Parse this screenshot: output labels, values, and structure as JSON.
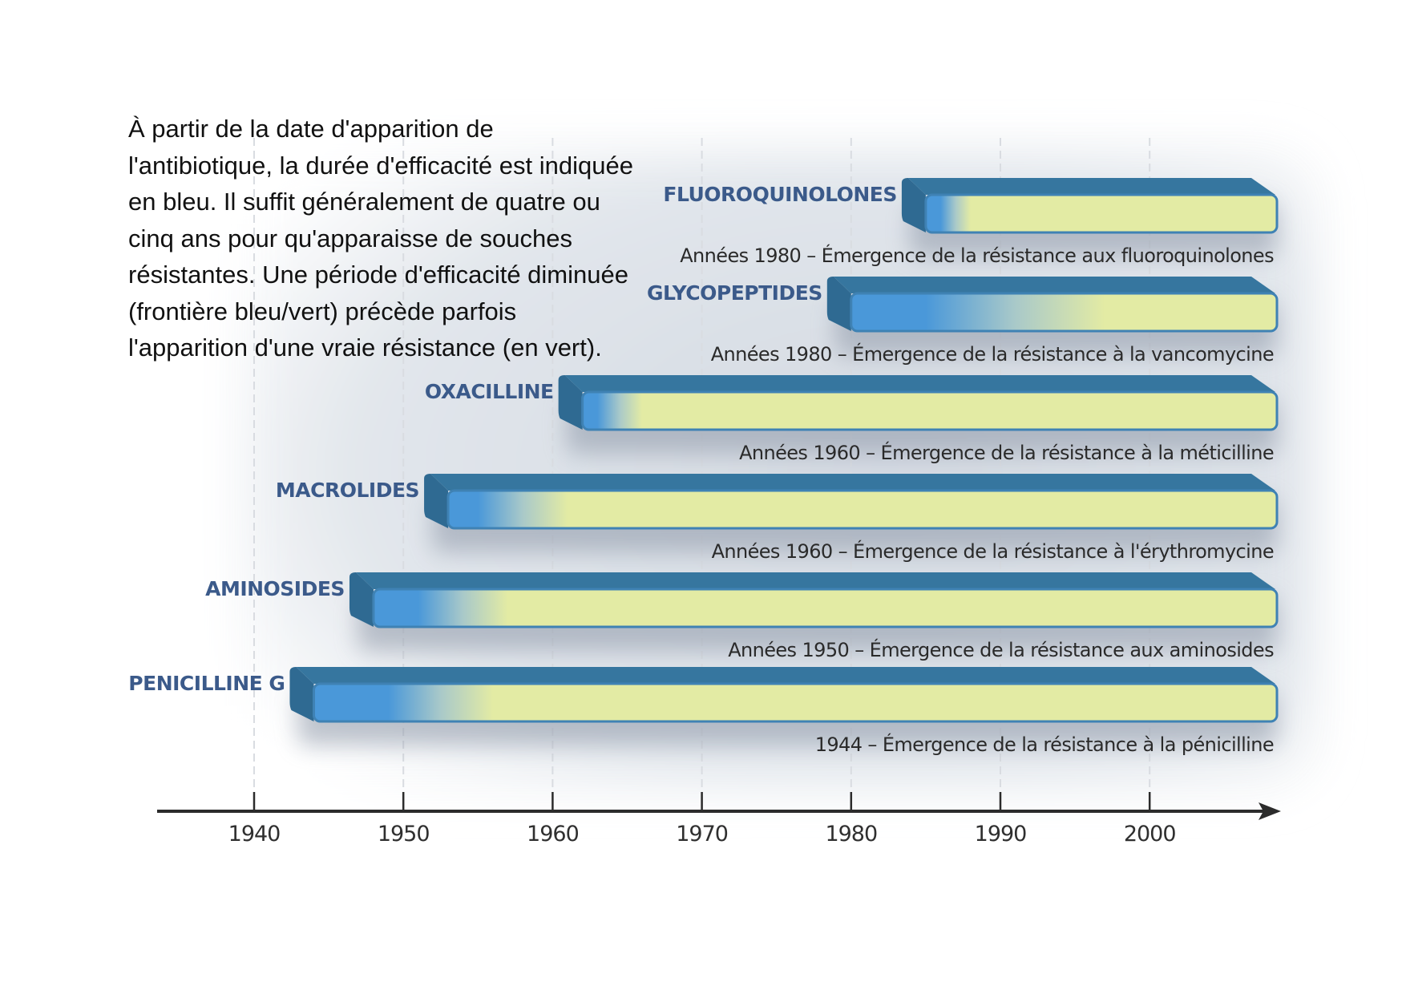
{
  "intro_text": {
    "lines": [
      "À partir de la date d'apparition de",
      "l'antibiotique, la durée d'efficacité est indiquée",
      "en bleu. Il suffit généralement de quatre ou",
      "cinq ans pour qu'apparaisse de souches",
      "résistantes. Une période d'efficacité diminuée",
      "(frontière bleu/vert) précède parfois",
      "l'apparition d'une vraie résistance (en vert)."
    ]
  },
  "colors": {
    "bar_top": "#36769f",
    "bar_side": "#2f6a92",
    "effective_blue": "#4a98d9",
    "resistance_green": "#e3eba4",
    "label_blue": "#3b5a8a",
    "axis": "#2b2b2b"
  },
  "chart_data": {
    "type": "bar",
    "orientation": "horizontal-timeline",
    "title": "",
    "xlabel": "",
    "ylabel": "",
    "xlim": [
      1933.5,
      2008.5
    ],
    "x_ticks": [
      1940,
      1950,
      1960,
      1970,
      1980,
      1990,
      2000
    ],
    "grid": "vertical dashed lines at decades",
    "legend": "none (explained in text at top-left)",
    "series": [
      {
        "name": "FLUOROQUINOLONES",
        "start": 1985,
        "blue_until": 1986,
        "green_from": 1988,
        "end": 2008,
        "annotation": "Années 1980 – Émergence de la résistance aux fluoroquinolones"
      },
      {
        "name": "GLYCOPEPTIDES",
        "start": 1980,
        "blue_until": 1985,
        "green_from": 1997,
        "end": 2008,
        "annotation": "Années 1980 – Émergence de la résistance à la vancomycine"
      },
      {
        "name": "OXACILLINE",
        "start": 1962,
        "blue_until": 1963,
        "green_from": 1966,
        "end": 2008,
        "annotation": "Années 1960 – Émergence de la résistance à la méticilline"
      },
      {
        "name": "MACROLIDES",
        "start": 1953,
        "blue_until": 1955,
        "green_from": 1961,
        "end": 2008,
        "annotation": "Années 1960 – Émergence de la résistance à l'érythromycine"
      },
      {
        "name": "AMINOSIDES",
        "start": 1948,
        "blue_until": 1951,
        "green_from": 1957,
        "end": 2008,
        "annotation": "Années 1950 – Émergence de la résistance aux aminosides"
      },
      {
        "name": "PENICILLINE G",
        "start": 1944,
        "blue_until": 1949,
        "green_from": 1956,
        "end": 2008,
        "annotation": "1944 – Émergence de la résistance à la pénicilline"
      }
    ]
  }
}
